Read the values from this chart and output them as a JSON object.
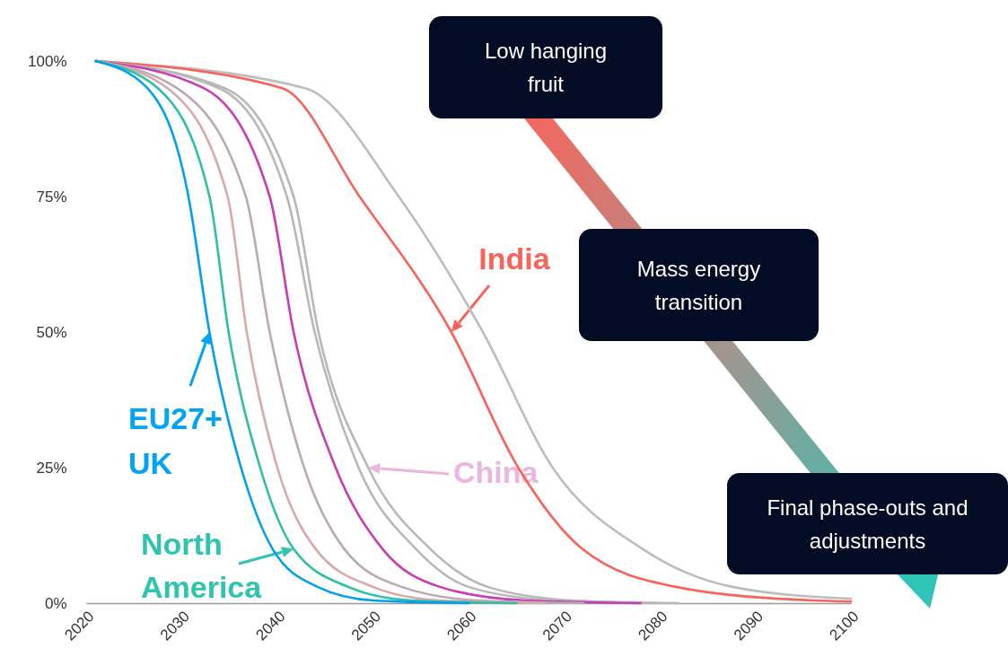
{
  "chart_data": {
    "type": "line",
    "xlim": [
      2020,
      2100
    ],
    "xticks": [
      2020,
      2030,
      2040,
      2050,
      2060,
      2070,
      2080,
      2090,
      2100
    ],
    "ylim": [
      0,
      100
    ],
    "yticks": [
      {
        "value": 0,
        "label": "0%"
      },
      {
        "value": 25,
        "label": "25%"
      },
      {
        "value": 50,
        "label": "50%"
      },
      {
        "value": 75,
        "label": "75%"
      },
      {
        "value": 100,
        "label": "100%"
      }
    ],
    "line_style": "solid",
    "marker": "none",
    "series": [
      {
        "color": "#bdbdbd",
        "x": [
          2021,
          2042.9,
          2052.7,
          2061.5,
          2068.8,
          2078.2,
          2087.6,
          2100
        ],
        "values": [
          100,
          95,
          75,
          50,
          25,
          10,
          3,
          0.8
        ]
      },
      {
        "color": "#f8625a",
        "x": [
          2021,
          2040.5,
          2048.6,
          2058.2,
          2065.2,
          2071.9,
          2081.7,
          2096,
          2100
        ],
        "values": [
          100,
          95,
          75,
          50,
          25,
          10,
          3,
          0.5,
          0.3
        ]
      },
      {
        "color": "#b8b8b8",
        "x": [
          2021,
          2034.5,
          2041.7,
          2044.3,
          2049.5,
          2056,
          2062,
          2071,
          2082
        ],
        "values": [
          100,
          95,
          75,
          50,
          25,
          10,
          3,
          0.5,
          0
        ]
      },
      {
        "color": "#b8b8b8",
        "x": [
          2021,
          2033.9,
          2041,
          2043.9,
          2048.5,
          2054.5,
          2060,
          2069,
          2080
        ],
        "values": [
          100,
          95,
          75,
          50,
          25,
          10,
          3,
          0.5,
          0
        ]
      },
      {
        "color": "#c83cb4",
        "x": [
          2021,
          2032.3,
          2039.2,
          2041.7,
          2046.1,
          2051,
          2057,
          2066,
          2078
        ],
        "values": [
          100,
          95,
          75,
          50,
          25,
          10,
          3,
          0.5,
          0
        ]
      },
      {
        "color": "#bba9b3",
        "x": [
          2021,
          2029.5,
          2036.7,
          2039.2,
          2042.8,
          2047,
          2053,
          2061,
          2072
        ],
        "values": [
          100,
          95,
          75,
          50,
          25,
          10,
          3,
          0.5,
          0
        ]
      },
      {
        "color": "#d9a9a9",
        "x": [
          2021,
          2028.5,
          2034.8,
          2036.8,
          2040,
          2044,
          2050,
          2057,
          2068
        ],
        "values": [
          100,
          95,
          75,
          50,
          25,
          10,
          3,
          0.5,
          0
        ]
      },
      {
        "color": "#2ebfa5",
        "x": [
          2021,
          2027.5,
          2032.9,
          2034.9,
          2038.2,
          2041.7,
          2047.4,
          2054,
          2065
        ],
        "values": [
          100,
          95,
          75,
          50,
          25,
          10,
          3,
          0.5,
          0
        ]
      },
      {
        "color": "#00a0f0",
        "x": [
          2021,
          2026.4,
          2030.7,
          2032.9,
          2036.2,
          2039.5,
          2044.2,
          2050,
          2060
        ],
        "values": [
          100,
          95,
          75,
          50,
          25,
          10,
          3,
          0.5,
          0
        ]
      }
    ],
    "annotations": [
      {
        "text": "India",
        "x": 2058.2,
        "y": 50
      },
      {
        "text": "EU27+ UK",
        "x": 2032.9,
        "y": 50
      },
      {
        "text": "China",
        "x": 2049.5,
        "y": 25
      },
      {
        "text": "North America",
        "x": 2041.7,
        "y": 10
      },
      "Low hanging fruit",
      "Mass energy transition",
      "Final phase-outs and adjustments"
    ]
  }
}
